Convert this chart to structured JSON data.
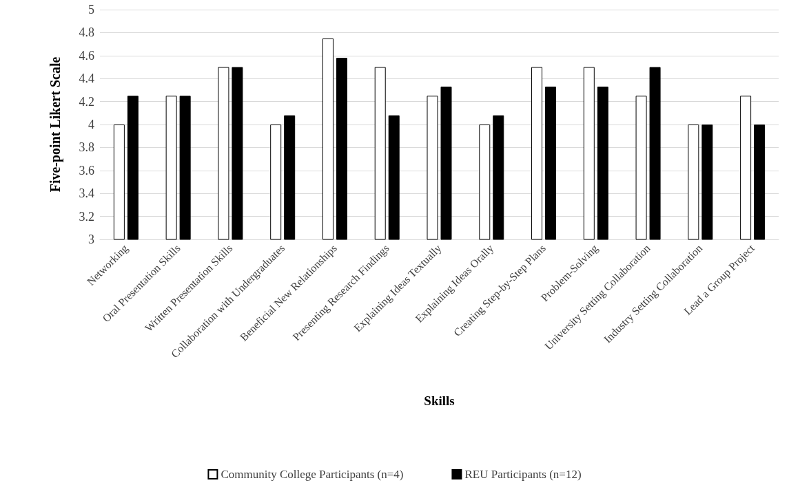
{
  "chart_data": {
    "type": "bar",
    "xlabel": "Skills",
    "ylabel": "Five-point Likert Scale",
    "categories": [
      "Networking",
      "Oral Presentation Skills",
      "Written Presentation Skills",
      "Collaboration with Undergraduates",
      "Beneficial New Relationships",
      "Presenting Research Findings",
      "Explaining Ideas Textually",
      "Explaining Ideas Orally",
      "Creating Step-by-Step Plans",
      "Problem-Solving",
      "University Setting Collaboration",
      "Industry Setting Collaboration",
      "Lead a Group Project"
    ],
    "series": [
      {
        "name": "Community College Participants (n=4)",
        "color": "#ffffff",
        "values": [
          4,
          4.25,
          4.5,
          4,
          4.75,
          4.5,
          4.25,
          4,
          4.5,
          4.5,
          4.25,
          4,
          4.25
        ]
      },
      {
        "name": "REU Participants (n=12)",
        "color": "#000000",
        "values": [
          4.25,
          4.25,
          4.5,
          4.08,
          4.58,
          4.08,
          4.33,
          4.08,
          4.33,
          4.33,
          4.5,
          4,
          4
        ]
      }
    ],
    "ylim": [
      3,
      5
    ],
    "yticks": [
      3,
      3.2,
      3.4,
      3.6,
      3.8,
      4,
      4.2,
      4.4,
      4.6,
      4.8,
      5
    ],
    "grid": "y",
    "legend": "bottom"
  }
}
